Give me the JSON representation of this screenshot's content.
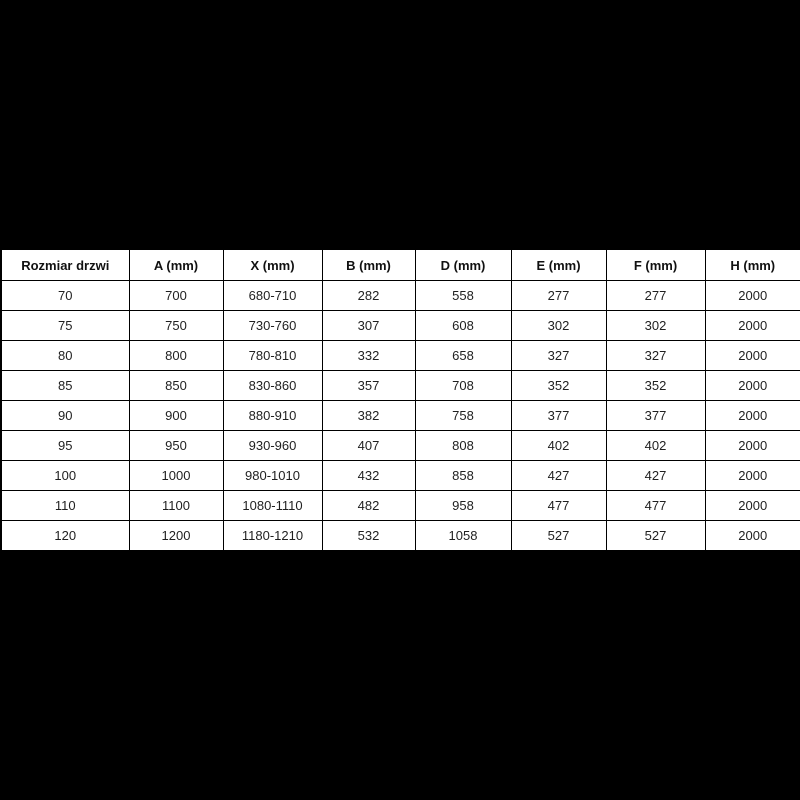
{
  "colors": {
    "canvas_background": "#000000",
    "table_background": "#ffffff",
    "border": "#000000",
    "text": "#1f1f1f"
  },
  "table": {
    "headers": [
      "Rozmiar drzwi",
      "A (mm)",
      "X (mm)",
      "B (mm)",
      "D (mm)",
      "E (mm)",
      "F (mm)",
      "H (mm)"
    ],
    "rows": [
      [
        "70",
        "700",
        "680-710",
        "282",
        "558",
        "277",
        "277",
        "2000"
      ],
      [
        "75",
        "750",
        "730-760",
        "307",
        "608",
        "302",
        "302",
        "2000"
      ],
      [
        "80",
        "800",
        "780-810",
        "332",
        "658",
        "327",
        "327",
        "2000"
      ],
      [
        "85",
        "850",
        "830-860",
        "357",
        "708",
        "352",
        "352",
        "2000"
      ],
      [
        "90",
        "900",
        "880-910",
        "382",
        "758",
        "377",
        "377",
        "2000"
      ],
      [
        "95",
        "950",
        "930-960",
        "407",
        "808",
        "402",
        "402",
        "2000"
      ],
      [
        "100",
        "1000",
        "980-1010",
        "432",
        "858",
        "427",
        "427",
        "2000"
      ],
      [
        "110",
        "1100",
        "1080-1110",
        "482",
        "958",
        "477",
        "477",
        "2000"
      ],
      [
        "120",
        "1200",
        "1180-1210",
        "532",
        "1058",
        "527",
        "527",
        "2000"
      ]
    ]
  }
}
